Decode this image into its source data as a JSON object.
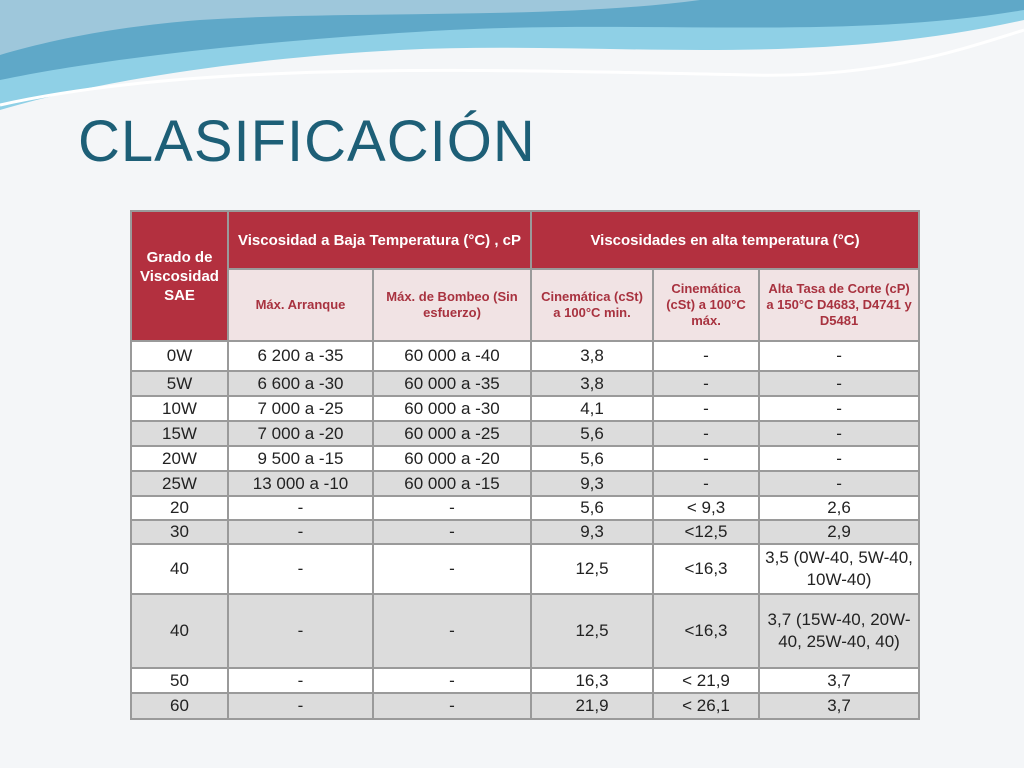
{
  "title": "CLASIFICACIÓN",
  "table": {
    "header_top": [
      "Grado de Viscosidad SAE",
      "Viscosidad a Baja Temperatura (°C) , cP",
      "Viscosidades en alta temperatura (°C)"
    ],
    "header_sub": [
      "Máx. Arranque",
      "Máx. de Bombeo (Sin esfuerzo)",
      "Cinemática (cSt) a 100°C min.",
      "Cinemática (cSt) a 100°C máx.",
      "Alta Tasa de Corte (cP) a 150°C D4683, D4741 y D5481"
    ],
    "rows": [
      [
        "0W",
        "6 200 a -35",
        "60 000 a -40",
        "3,8",
        "-",
        "-"
      ],
      [
        "5W",
        "6 600 a -30",
        "60 000 a -35",
        "3,8",
        "-",
        "-"
      ],
      [
        "10W",
        "7 000 a -25",
        "60 000 a -30",
        "4,1",
        "-",
        "-"
      ],
      [
        "15W",
        "7 000 a -20",
        "60 000 a -25",
        "5,6",
        "-",
        "-"
      ],
      [
        "20W",
        "9 500 a -15",
        "60 000 a -20",
        "5,6",
        "-",
        "-"
      ],
      [
        "25W",
        "13 000 a -10",
        "60 000 a -15",
        "9,3",
        "-",
        "-"
      ],
      [
        "20",
        "-",
        "-",
        "5,6",
        "< 9,3",
        "2,6"
      ],
      [
        "30",
        "-",
        "-",
        "9,3",
        "<12,5",
        "2,9"
      ],
      [
        "40",
        "-",
        "-",
        "12,5",
        "<16,3",
        "3,5 (0W-40, 5W-40, 10W-40)"
      ],
      [
        "40",
        "-",
        "-",
        "12,5",
        "<16,3",
        "3,7 (15W-40, 20W-40, 25W-40, 40)"
      ],
      [
        "50",
        "-",
        "-",
        "16,3",
        "< 21,9",
        "3,7"
      ],
      [
        "60",
        "-",
        "-",
        "21,9",
        "< 26,1",
        "3,7"
      ]
    ]
  }
}
